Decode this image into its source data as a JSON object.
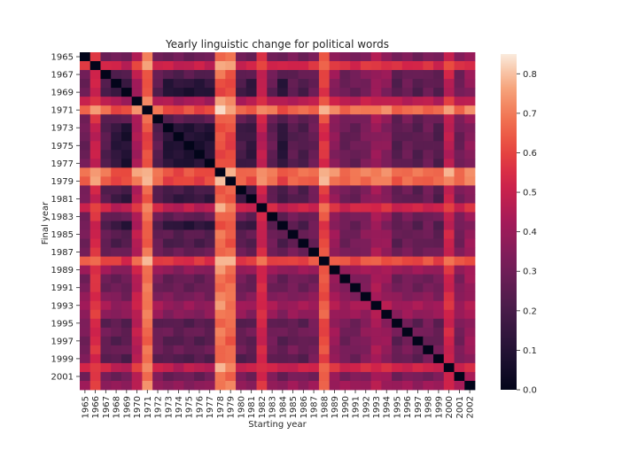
{
  "chart_data": {
    "type": "heatmap",
    "title": "Yearly linguistic change for political words",
    "xlabel": "Starting year",
    "ylabel": "Final year",
    "years": [
      1965,
      1966,
      1967,
      1968,
      1969,
      1970,
      1971,
      1972,
      1973,
      1974,
      1975,
      1976,
      1977,
      1978,
      1979,
      1980,
      1981,
      1982,
      1983,
      1984,
      1985,
      1986,
      1987,
      1988,
      1989,
      1990,
      1991,
      1992,
      1993,
      1994,
      1995,
      1996,
      1997,
      1998,
      1999,
      2000,
      2001,
      2002
    ],
    "x_tick_labels": [
      "1965",
      "1966",
      "1967",
      "1968",
      "1969",
      "1970",
      "1971",
      "1972",
      "1973",
      "1974",
      "1975",
      "1976",
      "1977",
      "1978",
      "1979",
      "1980",
      "1981",
      "1982",
      "1983",
      "1984",
      "1985",
      "1986",
      "1987",
      "1988",
      "1989",
      "1990",
      "1991",
      "1992",
      "1993",
      "1994",
      "1995",
      "1996",
      "1997",
      "1998",
      "1999",
      "2000",
      "2001",
      "2002"
    ],
    "y_tick_labels": [
      "1965",
      "1967",
      "1969",
      "1971",
      "1973",
      "1975",
      "1977",
      "1979",
      "1981",
      "1983",
      "1985",
      "1987",
      "1989",
      "1991",
      "1993",
      "1995",
      "1997",
      "1999",
      "2001"
    ],
    "colorbar": {
      "range": [
        0.0,
        0.85
      ],
      "tick_labels": [
        "0.0",
        "0.1",
        "0.2",
        "0.3",
        "0.4",
        "0.5",
        "0.6",
        "0.7",
        "0.8"
      ],
      "colormap": "rocket"
    },
    "row_col_scores": [
      0.27,
      0.46,
      0.22,
      0.12,
      0.07,
      0.4,
      0.57,
      0.23,
      0.1,
      0.07,
      0.09,
      0.08,
      0.09,
      0.58,
      0.56,
      0.18,
      0.14,
      0.44,
      0.25,
      0.11,
      0.23,
      0.2,
      0.26,
      0.52,
      0.34,
      0.26,
      0.26,
      0.3,
      0.36,
      0.33,
      0.22,
      0.26,
      0.22,
      0.26,
      0.21,
      0.44,
      0.27,
      0.34
    ],
    "scale_factor": 1.35,
    "max_value": 0.85
  }
}
